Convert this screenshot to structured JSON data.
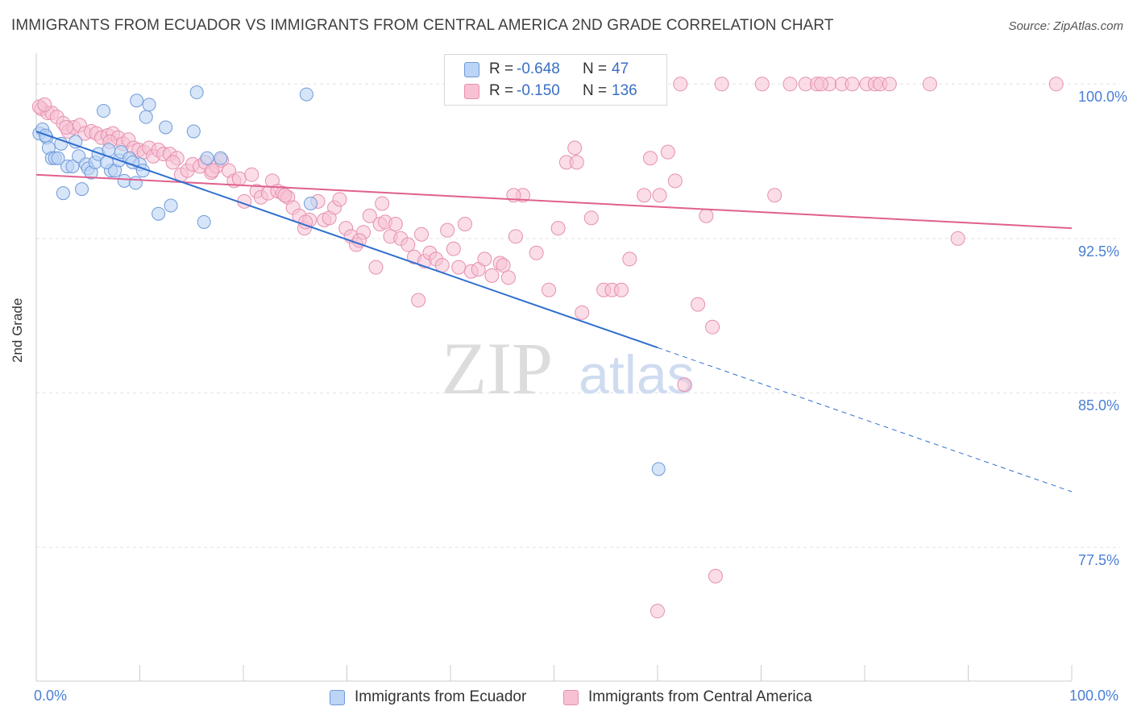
{
  "title": "IMMIGRANTS FROM ECUADOR VS IMMIGRANTS FROM CENTRAL AMERICA 2ND GRADE CORRELATION CHART",
  "source": "Source: ZipAtlas.com",
  "watermark": {
    "zip": "ZIP",
    "atlas": "atlas"
  },
  "legend_top": {
    "series1": {
      "r_label": "R =",
      "r_value": "-0.648",
      "n_label": "N =",
      "n_value": "47"
    },
    "series2": {
      "r_label": "R =",
      "r_value": "-0.150",
      "n_label": "N =",
      "n_value": "136"
    }
  },
  "chart_data": {
    "type": "scatter",
    "title": "IMMIGRANTS FROM ECUADOR VS IMMIGRANTS FROM CENTRAL AMERICA 2ND GRADE CORRELATION CHART",
    "xlabel": "",
    "ylabel": "2nd Grade",
    "xlim": [
      0,
      100
    ],
    "ylim": [
      71.0,
      101.5
    ],
    "x_tick_labels": [
      "0.0%",
      "100.0%"
    ],
    "y_ticks": [
      77.5,
      85.0,
      92.5,
      100.0
    ],
    "y_tick_labels": [
      "77.5%",
      "85.0%",
      "92.5%",
      "100.0%"
    ],
    "colors": {
      "blue": "#6f9ad8",
      "blue_fill": "#bcd4f5",
      "blue_line": "#2f6fd0",
      "pink": "#e590b0",
      "pink_fill": "#f7c1d3",
      "pink_line": "#e0608f"
    },
    "series": [
      {
        "name": "Immigrants from Ecuador",
        "color": "blue",
        "trend": {
          "x0": 0.0,
          "y0": 97.7,
          "x1": 60.0,
          "y1": 87.2,
          "x_dash_end": 100.0,
          "y_dash_end": 80.2
        },
        "points": [
          [
            0.3,
            97.6
          ],
          [
            0.6,
            97.8
          ],
          [
            1.0,
            97.4
          ],
          [
            1.2,
            96.9
          ],
          [
            1.5,
            96.4
          ],
          [
            1.8,
            96.4
          ],
          [
            2.4,
            97.1
          ],
          [
            2.6,
            94.7
          ],
          [
            3.0,
            96.0
          ],
          [
            3.5,
            96.0
          ],
          [
            3.8,
            97.2
          ],
          [
            4.1,
            96.5
          ],
          [
            4.4,
            94.9
          ],
          [
            4.8,
            96.1
          ],
          [
            5.0,
            95.9
          ],
          [
            5.3,
            95.7
          ],
          [
            5.7,
            96.2
          ],
          [
            6.0,
            96.6
          ],
          [
            6.5,
            98.7
          ],
          [
            7.0,
            96.8
          ],
          [
            7.2,
            95.8
          ],
          [
            7.6,
            95.8
          ],
          [
            8.0,
            96.3
          ],
          [
            8.2,
            96.7
          ],
          [
            8.5,
            95.3
          ],
          [
            9.0,
            96.4
          ],
          [
            9.6,
            95.2
          ],
          [
            9.7,
            99.2
          ],
          [
            10.0,
            96.1
          ],
          [
            10.3,
            95.8
          ],
          [
            10.6,
            98.4
          ],
          [
            10.9,
            99.0
          ],
          [
            11.8,
            93.7
          ],
          [
            12.5,
            97.9
          ],
          [
            13.0,
            94.1
          ],
          [
            15.2,
            97.7
          ],
          [
            15.5,
            99.6
          ],
          [
            16.2,
            93.3
          ],
          [
            16.5,
            96.4
          ],
          [
            17.8,
            96.4
          ],
          [
            26.1,
            99.5
          ],
          [
            26.5,
            94.2
          ],
          [
            60.1,
            81.3
          ],
          [
            0.9,
            97.5
          ],
          [
            2.1,
            96.4
          ],
          [
            6.8,
            96.2
          ],
          [
            9.3,
            96.2
          ]
        ]
      },
      {
        "name": "Immigrants from Central America",
        "color": "pink",
        "trend": {
          "x0": 0.0,
          "y0": 95.6,
          "x1": 100.0,
          "y1": 93.0
        },
        "points": [
          [
            0.5,
            98.8
          ],
          [
            1.1,
            98.6
          ],
          [
            1.5,
            98.6
          ],
          [
            2.0,
            98.4
          ],
          [
            2.6,
            98.1
          ],
          [
            3.1,
            97.7
          ],
          [
            3.6,
            97.9
          ],
          [
            4.2,
            98.0
          ],
          [
            4.7,
            97.6
          ],
          [
            5.3,
            97.7
          ],
          [
            5.8,
            97.6
          ],
          [
            6.3,
            97.4
          ],
          [
            6.9,
            97.5
          ],
          [
            7.4,
            97.6
          ],
          [
            7.9,
            97.4
          ],
          [
            8.4,
            97.1
          ],
          [
            8.9,
            97.3
          ],
          [
            9.4,
            96.9
          ],
          [
            9.9,
            96.8
          ],
          [
            10.4,
            96.7
          ],
          [
            10.9,
            96.9
          ],
          [
            11.3,
            96.5
          ],
          [
            11.8,
            96.8
          ],
          [
            12.3,
            96.6
          ],
          [
            12.9,
            96.6
          ],
          [
            13.6,
            96.4
          ],
          [
            14.0,
            95.6
          ],
          [
            14.6,
            95.8
          ],
          [
            15.1,
            96.1
          ],
          [
            15.8,
            96.0
          ],
          [
            16.3,
            96.2
          ],
          [
            16.9,
            95.7
          ],
          [
            17.4,
            96.0
          ],
          [
            17.9,
            96.3
          ],
          [
            18.6,
            95.8
          ],
          [
            19.1,
            95.3
          ],
          [
            19.6,
            95.4
          ],
          [
            20.1,
            94.3
          ],
          [
            20.8,
            95.6
          ],
          [
            21.3,
            94.8
          ],
          [
            21.7,
            94.5
          ],
          [
            22.4,
            94.7
          ],
          [
            22.8,
            95.3
          ],
          [
            23.3,
            94.8
          ],
          [
            23.8,
            94.7
          ],
          [
            24.3,
            94.5
          ],
          [
            24.8,
            94.0
          ],
          [
            25.4,
            93.6
          ],
          [
            25.9,
            93.0
          ],
          [
            26.4,
            93.4
          ],
          [
            27.2,
            94.3
          ],
          [
            27.8,
            93.4
          ],
          [
            28.3,
            93.5
          ],
          [
            28.8,
            94.0
          ],
          [
            29.3,
            94.4
          ],
          [
            29.9,
            93.0
          ],
          [
            30.4,
            92.6
          ],
          [
            30.9,
            92.2
          ],
          [
            31.6,
            92.8
          ],
          [
            32.2,
            93.6
          ],
          [
            32.8,
            91.1
          ],
          [
            33.2,
            93.2
          ],
          [
            33.7,
            93.3
          ],
          [
            34.2,
            92.6
          ],
          [
            34.7,
            93.2
          ],
          [
            35.2,
            92.5
          ],
          [
            35.9,
            92.2
          ],
          [
            36.5,
            91.6
          ],
          [
            36.9,
            89.5
          ],
          [
            37.5,
            91.4
          ],
          [
            38.0,
            91.8
          ],
          [
            38.6,
            91.5
          ],
          [
            39.2,
            91.2
          ],
          [
            39.7,
            92.9
          ],
          [
            40.3,
            92.0
          ],
          [
            40.8,
            91.1
          ],
          [
            41.4,
            93.2
          ],
          [
            42.0,
            90.9
          ],
          [
            42.7,
            91.0
          ],
          [
            43.3,
            91.5
          ],
          [
            44.0,
            90.7
          ],
          [
            44.8,
            91.3
          ],
          [
            45.6,
            90.6
          ],
          [
            46.3,
            92.6
          ],
          [
            47.0,
            94.6
          ],
          [
            48.3,
            91.8
          ],
          [
            49.5,
            90.0
          ],
          [
            50.4,
            93.0
          ],
          [
            51.2,
            96.2
          ],
          [
            52.0,
            96.9
          ],
          [
            52.7,
            88.9
          ],
          [
            53.6,
            93.5
          ],
          [
            54.8,
            90.0
          ],
          [
            55.6,
            90.0
          ],
          [
            56.5,
            90.0
          ],
          [
            57.3,
            91.5
          ],
          [
            58.7,
            94.6
          ],
          [
            59.3,
            96.4
          ],
          [
            60.2,
            94.6
          ],
          [
            61.0,
            96.7
          ],
          [
            61.7,
            95.3
          ],
          [
            62.6,
            85.4
          ],
          [
            63.9,
            89.3
          ],
          [
            64.7,
            93.6
          ],
          [
            65.3,
            88.2
          ],
          [
            66.2,
            100.0
          ],
          [
            70.1,
            100.0
          ],
          [
            71.3,
            94.6
          ],
          [
            72.8,
            100.0
          ],
          [
            74.3,
            100.0
          ],
          [
            75.4,
            100.0
          ],
          [
            76.6,
            100.0
          ],
          [
            77.8,
            100.0
          ],
          [
            78.8,
            100.0
          ],
          [
            80.2,
            100.0
          ],
          [
            81.0,
            100.0
          ],
          [
            81.5,
            100.0
          ],
          [
            82.4,
            100.0
          ],
          [
            86.3,
            100.0
          ],
          [
            89.0,
            92.5
          ],
          [
            60.0,
            74.4
          ],
          [
            65.6,
            76.1
          ],
          [
            0.3,
            98.9
          ],
          [
            0.8,
            99.0
          ],
          [
            2.9,
            97.9
          ],
          [
            7.1,
            97.2
          ],
          [
            13.2,
            96.2
          ],
          [
            17.0,
            95.8
          ],
          [
            24.0,
            94.6
          ],
          [
            26.0,
            93.3
          ],
          [
            31.2,
            92.4
          ],
          [
            37.2,
            92.7
          ],
          [
            45.1,
            91.2
          ],
          [
            52.2,
            96.2
          ],
          [
            55.0,
            100.0
          ],
          [
            59.6,
            100.0
          ],
          [
            62.2,
            100.0
          ],
          [
            57.2,
            100.0
          ],
          [
            53.7,
            100.0
          ],
          [
            50.5,
            100.0
          ],
          [
            75.8,
            100.0
          ],
          [
            98.5,
            100.0
          ],
          [
            46.1,
            94.6
          ],
          [
            33.4,
            94.2
          ]
        ]
      }
    ],
    "legend": [
      "Immigrants from Ecuador",
      "Immigrants from Central America"
    ]
  }
}
